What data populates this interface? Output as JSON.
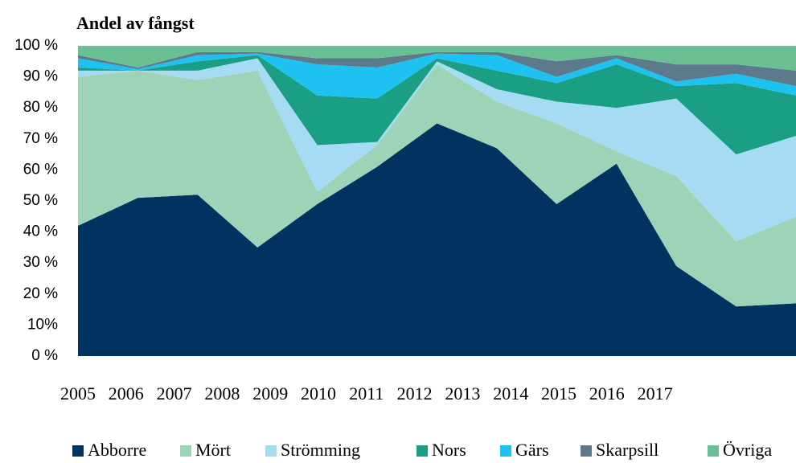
{
  "chart_data": {
    "type": "stacked_area",
    "title": "Andel av fångst",
    "categories": [
      "2005",
      "2006",
      "2007",
      "2008",
      "2009",
      "2010",
      "2011",
      "2012",
      "2013",
      "2014",
      "2015",
      "2016",
      "2017"
    ],
    "ylim": [
      0,
      100
    ],
    "yticks": [
      {
        "value": 0,
        "label": "0 %"
      },
      {
        "value": 10,
        "label": "10%"
      },
      {
        "value": 20,
        "label": "20 %"
      },
      {
        "value": 30,
        "label": "30 %"
      },
      {
        "value": 40,
        "label": "40 %"
      },
      {
        "value": 50,
        "label": "50 %"
      },
      {
        "value": 60,
        "label": "60 %"
      },
      {
        "value": 70,
        "label": "70 %"
      },
      {
        "value": 80,
        "label": "80 %"
      },
      {
        "value": 90,
        "label": "90 %"
      },
      {
        "value": 100,
        "label": "100 %"
      }
    ],
    "legend": "bottom",
    "series": [
      {
        "name": "Abborre",
        "color": "#003360",
        "values": [
          42,
          51,
          52,
          35,
          49,
          61,
          75,
          67,
          49,
          62,
          29,
          16,
          17
        ]
      },
      {
        "name": "Mört",
        "color": "#9dd4b8",
        "values": [
          48,
          41,
          37,
          57,
          4,
          7,
          19,
          15,
          26,
          4,
          29,
          21,
          28
        ]
      },
      {
        "name": "Strömming",
        "color": "#a5dcf4",
        "values": [
          2,
          0,
          3,
          4,
          15,
          1,
          1,
          4,
          7,
          14,
          25,
          28,
          26
        ]
      },
      {
        "name": "Nors",
        "color": "#1a9e84",
        "values": [
          1,
          0,
          3,
          1,
          16,
          14,
          1,
          6,
          6,
          14,
          4,
          23,
          13
        ]
      },
      {
        "name": "Gärs",
        "color": "#1ec2f0",
        "values": [
          3,
          0.5,
          2,
          0.5,
          10,
          10,
          1.5,
          5,
          2,
          2,
          1.5,
          3,
          3
        ]
      },
      {
        "name": "Skarpsill",
        "color": "#5c7a8c",
        "values": [
          1,
          0.5,
          1,
          0.5,
          2,
          3,
          0.5,
          1,
          5,
          1,
          5.5,
          3,
          5
        ]
      },
      {
        "name": "Övriga",
        "color": "#6ac093",
        "values": [
          3,
          7,
          2,
          2,
          4,
          4,
          2,
          2,
          5,
          3,
          6,
          6,
          8
        ]
      }
    ]
  }
}
